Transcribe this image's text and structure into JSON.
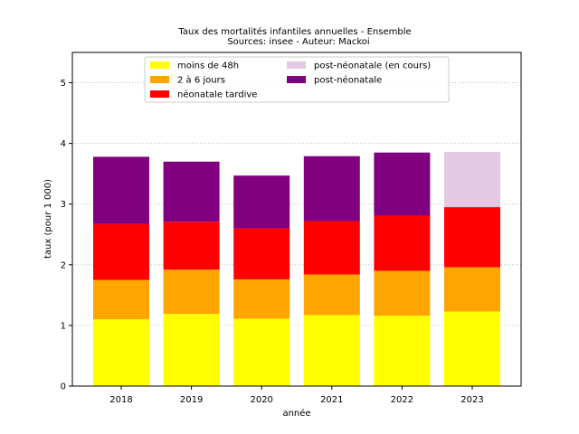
{
  "chart_data": {
    "type": "bar",
    "stacked": true,
    "title": "Taux des mortalités infantiles annuelles - Ensemble",
    "subtitle": "Sources: insee - Auteur: Mackoi",
    "xlabel": "année",
    "ylabel": "taux (pour 1 000)",
    "ylim": [
      0,
      5.5
    ],
    "yticks": [
      0,
      1,
      2,
      3,
      4,
      5
    ],
    "grid": "y-dotted",
    "legend_position": "top-center",
    "categories": [
      "2018",
      "2019",
      "2020",
      "2021",
      "2022",
      "2023"
    ],
    "series": [
      {
        "name": "moins de 48h",
        "color": "#ffff00",
        "values": [
          1.1,
          1.19,
          1.11,
          1.17,
          1.16,
          1.23
        ]
      },
      {
        "name": "2 à 6 jours",
        "color": "#ffa500",
        "values": [
          0.65,
          0.73,
          0.65,
          0.67,
          0.74,
          0.73
        ]
      },
      {
        "name": "néonatale tardive",
        "color": "#ff0000",
        "values": [
          0.92,
          0.79,
          0.84,
          0.88,
          0.91,
          0.99
        ]
      },
      {
        "name": "post-néonatale",
        "color": "#800080",
        "values": [
          1.11,
          0.99,
          0.87,
          1.07,
          1.04,
          null
        ]
      },
      {
        "name": "post-néonatale (en cours)",
        "color": "#e3c9e3",
        "values": [
          null,
          null,
          null,
          null,
          null,
          0.91
        ]
      }
    ],
    "legend_order": [
      "moins de 48h",
      "2 à 6 jours",
      "néonatale tardive",
      "post-néonatale (en cours)",
      "post-néonatale"
    ]
  }
}
